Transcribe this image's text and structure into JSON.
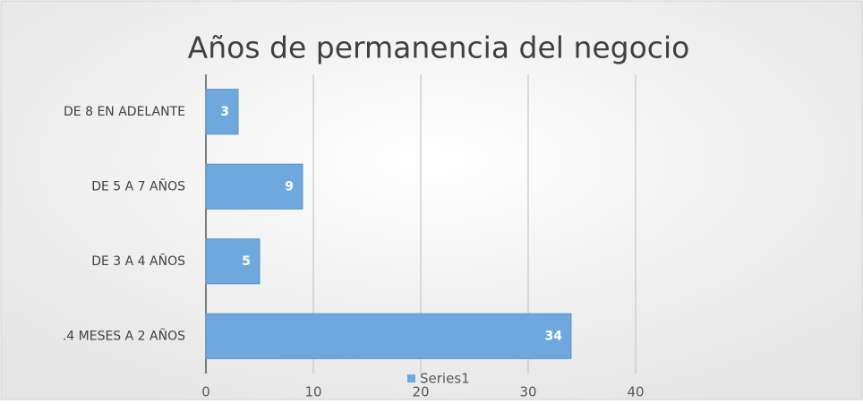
{
  "chart_data": {
    "type": "barh",
    "title": "Años de permanencia del negocio",
    "categories": [
      ".4 MESES  A 2 AÑOS",
      "DE 3 A 4 AÑOS",
      "DE 5 A 7 AÑOS",
      "DE 8 EN ADELANTE"
    ],
    "series": [
      {
        "name": "Series1",
        "color": "#6fa8dc",
        "values": [
          34,
          5,
          9,
          3
        ]
      }
    ],
    "xlim": [
      0,
      40
    ],
    "xticks": [
      0,
      10,
      20,
      30,
      40
    ],
    "grid": true,
    "legend": "bottom"
  }
}
